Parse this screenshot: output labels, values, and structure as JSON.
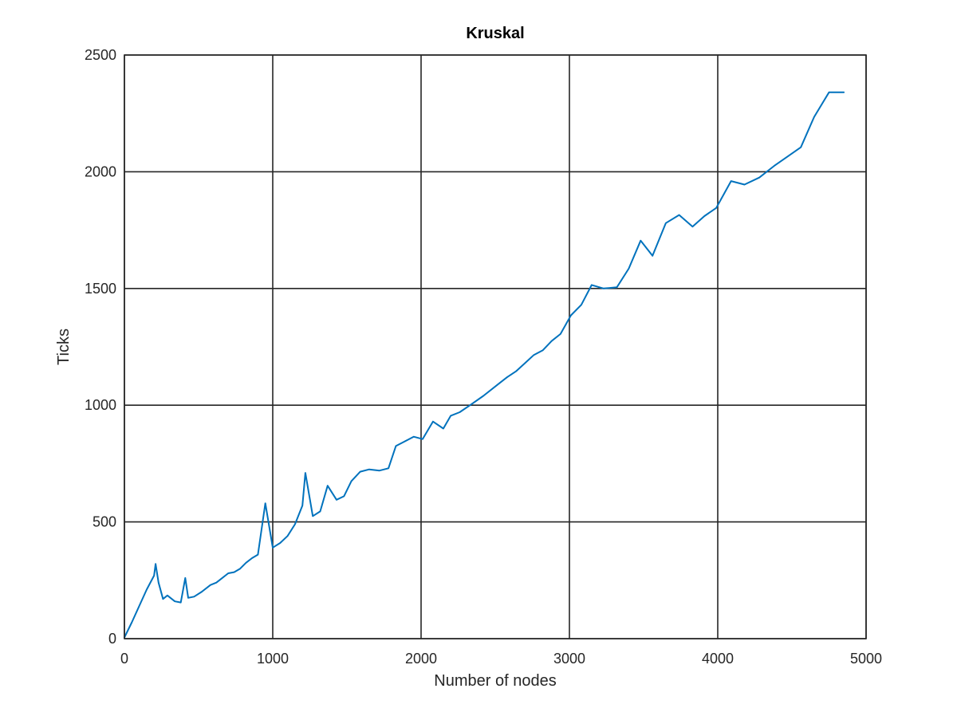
{
  "chart_data": {
    "type": "line",
    "title": "Kruskal",
    "xlabel": "Number of nodes",
    "ylabel": "Ticks",
    "xlim": [
      0,
      5000
    ],
    "ylim": [
      0,
      2500
    ],
    "xticks": [
      0,
      1000,
      2000,
      3000,
      4000,
      5000
    ],
    "yticks": [
      0,
      500,
      1000,
      1500,
      2000,
      2500
    ],
    "grid": true,
    "colors": {
      "series": "#0072bd",
      "axis": "#262626"
    },
    "series": [
      {
        "x": [
          0,
          50,
          100,
          150,
          200,
          210,
          230,
          260,
          290,
          340,
          380,
          410,
          430,
          470,
          520,
          580,
          620,
          650,
          700,
          740,
          780,
          820,
          860,
          900,
          950,
          1000,
          1050,
          1100,
          1150,
          1200,
          1220,
          1270,
          1320,
          1370,
          1430,
          1480,
          1530,
          1590,
          1650,
          1720,
          1780,
          1830,
          1890,
          1950,
          2010,
          2080,
          2150,
          2200,
          2260,
          2330,
          2420,
          2520,
          2580,
          2640,
          2700,
          2760,
          2820,
          2880,
          2940,
          3010,
          3080,
          3150,
          3230,
          3320,
          3400,
          3480,
          3560,
          3650,
          3740,
          3830,
          3910,
          3990,
          4090,
          4180,
          4280,
          4380,
          4470,
          4560,
          4650,
          4750,
          4850
        ],
        "y": [
          5,
          70,
          140,
          210,
          270,
          320,
          240,
          170,
          185,
          160,
          155,
          260,
          175,
          180,
          200,
          230,
          240,
          255,
          280,
          285,
          300,
          325,
          345,
          360,
          580,
          390,
          410,
          440,
          490,
          570,
          710,
          525,
          545,
          655,
          595,
          610,
          675,
          715,
          725,
          720,
          730,
          825,
          845,
          865,
          855,
          930,
          900,
          955,
          970,
          1000,
          1040,
          1090,
          1120,
          1145,
          1180,
          1215,
          1235,
          1275,
          1305,
          1385,
          1430,
          1515,
          1500,
          1505,
          1585,
          1705,
          1640,
          1780,
          1815,
          1765,
          1810,
          1845,
          1960,
          1945,
          1975,
          2025,
          2065,
          2105,
          2235,
          2340,
          2340
        ]
      }
    ]
  }
}
